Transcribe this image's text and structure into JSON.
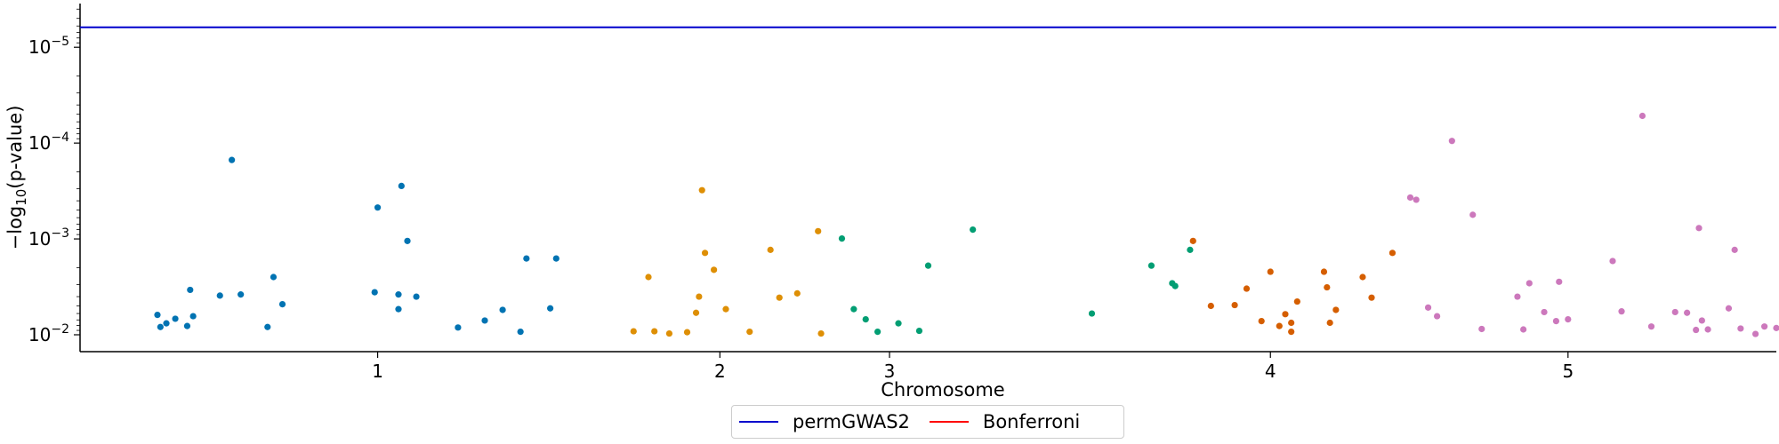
{
  "chart_data": {
    "type": "scatter",
    "title": "",
    "xlabel": "Chromosome",
    "ylabel_prefix": "−log",
    "ylabel_sub": "10",
    "ylabel_suffix": "(p-value)",
    "y_scale": "log",
    "y_inverted": true,
    "ylim": [
      0.015,
      3.5e-06
    ],
    "xlim": [
      0,
      5.7
    ],
    "x_ticks": [
      {
        "value": 1,
        "label": "1"
      },
      {
        "value": 2.15,
        "label": "2"
      },
      {
        "value": 2.72,
        "label": "3"
      },
      {
        "value": 4.0,
        "label": "4"
      },
      {
        "value": 5.0,
        "label": "5"
      }
    ],
    "y_ticks": [
      {
        "value": 0.01,
        "base": "10",
        "exp": "−2"
      },
      {
        "value": 0.001,
        "base": "10",
        "exp": "−3"
      },
      {
        "value": 0.0001,
        "base": "10",
        "exp": "−4"
      },
      {
        "value": 1e-05,
        "base": "10",
        "exp": "−5"
      }
    ],
    "grid": false,
    "legend_position": "bottom-center",
    "threshold_lines": [
      {
        "name": "permGWAS2",
        "y": 6.2e-06,
        "color": "#0000cc"
      },
      {
        "name": "Bonferroni",
        "y": 2.3e-06,
        "color": "#ff0000"
      }
    ],
    "series": [
      {
        "chromosome": "1",
        "color": "#0173b2",
        "points": [
          [
            0.26,
            0.0062
          ],
          [
            0.27,
            0.0083
          ],
          [
            0.29,
            0.0076
          ],
          [
            0.32,
            0.0068
          ],
          [
            0.36,
            0.0081
          ],
          [
            0.37,
            0.0034
          ],
          [
            0.38,
            0.0064
          ],
          [
            0.47,
            0.0039
          ],
          [
            0.51,
            0.00015
          ],
          [
            0.54,
            0.0038
          ],
          [
            0.63,
            0.0083
          ],
          [
            0.65,
            0.0025
          ],
          [
            0.68,
            0.0048
          ],
          [
            0.99,
            0.0036
          ],
          [
            1.0,
            0.00047
          ],
          [
            1.07,
            0.0054
          ],
          [
            1.07,
            0.0038
          ],
          [
            1.08,
            0.00028
          ],
          [
            1.1,
            0.00105
          ],
          [
            1.13,
            0.004
          ],
          [
            1.27,
            0.0084
          ],
          [
            1.36,
            0.0071
          ],
          [
            1.42,
            0.0055
          ],
          [
            1.48,
            0.0093
          ],
          [
            1.5,
            0.0016
          ],
          [
            1.58,
            0.0053
          ],
          [
            1.6,
            0.0016
          ]
        ]
      },
      {
        "chromosome": "2",
        "color": "#de8f05",
        "points": [
          [
            1.86,
            0.0092
          ],
          [
            1.91,
            0.0025
          ],
          [
            1.93,
            0.0092
          ],
          [
            1.98,
            0.0097
          ],
          [
            2.04,
            0.0094
          ],
          [
            2.07,
            0.0059
          ],
          [
            2.08,
            0.004
          ],
          [
            2.09,
            0.00031
          ],
          [
            2.1,
            0.0014
          ],
          [
            2.13,
            0.0021
          ],
          [
            2.17,
            0.0054
          ],
          [
            2.25,
            0.0093
          ],
          [
            2.32,
            0.0013
          ],
          [
            2.35,
            0.0041
          ],
          [
            2.41,
            0.0037
          ],
          [
            2.48,
            0.00083
          ],
          [
            2.49,
            0.0097
          ]
        ]
      },
      {
        "chromosome": "3",
        "color": "#029e73",
        "points": [
          [
            2.56,
            0.00099
          ],
          [
            2.6,
            0.0054
          ],
          [
            2.64,
            0.0069
          ],
          [
            2.68,
            0.0093
          ],
          [
            2.75,
            0.0076
          ],
          [
            2.82,
            0.0091
          ],
          [
            2.85,
            0.0019
          ],
          [
            3.0,
            0.0008
          ],
          [
            3.4,
            0.006
          ],
          [
            3.6,
            0.0019
          ],
          [
            3.67,
            0.0029
          ],
          [
            3.68,
            0.0031
          ],
          [
            3.73,
            0.0013
          ]
        ]
      },
      {
        "chromosome": "4",
        "color": "#d55e00",
        "points": [
          [
            3.74,
            0.00105
          ],
          [
            3.8,
            0.005
          ],
          [
            3.88,
            0.0049
          ],
          [
            3.92,
            0.0033
          ],
          [
            3.97,
            0.0072
          ],
          [
            4.03,
            0.0081
          ],
          [
            4.05,
            0.0061
          ],
          [
            4.07,
            0.0075
          ],
          [
            4.07,
            0.0093
          ],
          [
            4.0,
            0.0022
          ],
          [
            4.09,
            0.0045
          ],
          [
            4.18,
            0.0022
          ],
          [
            4.19,
            0.0032
          ],
          [
            4.2,
            0.0075
          ],
          [
            4.22,
            0.0055
          ],
          [
            4.31,
            0.0025
          ],
          [
            4.34,
            0.0041
          ],
          [
            4.41,
            0.0014
          ]
        ]
      },
      {
        "chromosome": "5",
        "color": "#cc78bc",
        "points": [
          [
            4.47,
            0.00037
          ],
          [
            4.49,
            0.00039
          ],
          [
            4.53,
            0.0052
          ],
          [
            4.56,
            0.0064
          ],
          [
            4.61,
            9.5e-05
          ],
          [
            4.68,
            0.00056
          ],
          [
            4.71,
            0.0087
          ],
          [
            4.83,
            0.004
          ],
          [
            4.85,
            0.0088
          ],
          [
            4.87,
            0.0029
          ],
          [
            4.92,
            0.0058
          ],
          [
            4.96,
            0.0072
          ],
          [
            4.97,
            0.0028
          ],
          [
            5.0,
            0.0069
          ],
          [
            5.15,
            0.0017
          ],
          [
            5.18,
            0.0057
          ],
          [
            5.25,
            5.2e-05
          ],
          [
            5.28,
            0.0082
          ],
          [
            5.36,
            0.0058
          ],
          [
            5.4,
            0.0059
          ],
          [
            5.43,
            0.0089
          ],
          [
            5.44,
            0.00077
          ],
          [
            5.45,
            0.0071
          ],
          [
            5.47,
            0.0088
          ],
          [
            5.54,
            0.0053
          ],
          [
            5.56,
            0.0013
          ],
          [
            5.58,
            0.0086
          ],
          [
            5.63,
            0.0098
          ],
          [
            5.66,
            0.0082
          ],
          [
            5.7,
            0.0085
          ],
          [
            5.72,
            0.0086
          ],
          [
            5.73,
            0.0083
          ]
        ]
      }
    ]
  }
}
